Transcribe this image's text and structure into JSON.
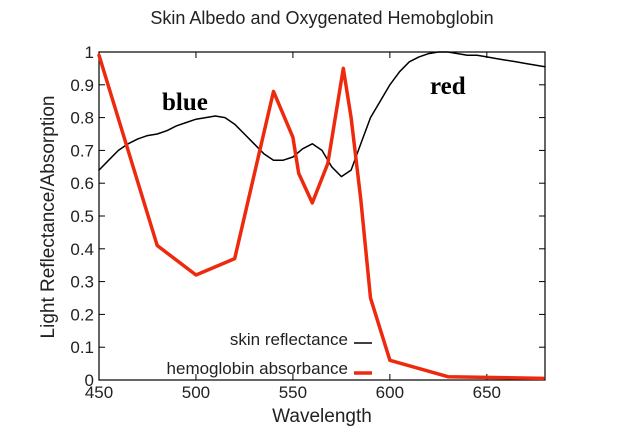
{
  "chart_data": {
    "type": "line",
    "title": "Skin Albedo and Oxygenated Hemobglobin",
    "xlabel": "Wavelength",
    "ylabel": "Light Reflectance/Absorption",
    "xlim": [
      450,
      680
    ],
    "ylim": [
      0,
      1
    ],
    "xticks": [
      450,
      500,
      550,
      600,
      650
    ],
    "yticks": [
      0,
      0.1,
      0.2,
      0.3,
      0.4,
      0.5,
      0.6,
      0.7,
      0.8,
      0.9,
      1
    ],
    "ytick_labels": [
      "0",
      "0.1",
      "0.2",
      "0.3",
      "0.4",
      "0.5",
      "0.6",
      "0.7",
      "0.8",
      "0.9",
      "1"
    ],
    "grid": false,
    "legend_position": "bottom-center",
    "annotations": [
      {
        "text": "blue",
        "x": 478,
        "y": 0.85
      },
      {
        "text": "red",
        "x": 621,
        "y": 0.92
      }
    ],
    "series": [
      {
        "name": "skin reflectance",
        "color": "#000000",
        "x": [
          450,
          455,
          460,
          465,
          470,
          475,
          480,
          485,
          490,
          495,
          500,
          505,
          510,
          515,
          520,
          525,
          530,
          535,
          540,
          545,
          550,
          555,
          560,
          565,
          570,
          575,
          580,
          585,
          590,
          595,
          600,
          605,
          610,
          615,
          620,
          625,
          630,
          635,
          640,
          645,
          650,
          655,
          660,
          665,
          670,
          675,
          680
        ],
        "values": [
          0.64,
          0.67,
          0.7,
          0.72,
          0.735,
          0.745,
          0.75,
          0.76,
          0.775,
          0.785,
          0.795,
          0.8,
          0.805,
          0.8,
          0.78,
          0.75,
          0.72,
          0.69,
          0.67,
          0.67,
          0.68,
          0.705,
          0.72,
          0.7,
          0.65,
          0.62,
          0.64,
          0.72,
          0.8,
          0.85,
          0.9,
          0.94,
          0.97,
          0.985,
          0.995,
          1.0,
          1.0,
          0.995,
          0.99,
          0.99,
          0.985,
          0.98,
          0.975,
          0.97,
          0.965,
          0.96,
          0.955
        ]
      },
      {
        "name": "hemoglobin absorbance",
        "color": "#ee2a0e",
        "x": [
          450,
          480,
          500,
          520,
          540,
          550,
          553,
          560,
          568,
          576,
          580,
          585,
          590,
          600,
          630,
          679
        ],
        "values": [
          0.99,
          0.41,
          0.32,
          0.37,
          0.88,
          0.74,
          0.63,
          0.54,
          0.66,
          0.95,
          0.8,
          0.55,
          0.25,
          0.06,
          0.01,
          0.005
        ]
      }
    ]
  }
}
